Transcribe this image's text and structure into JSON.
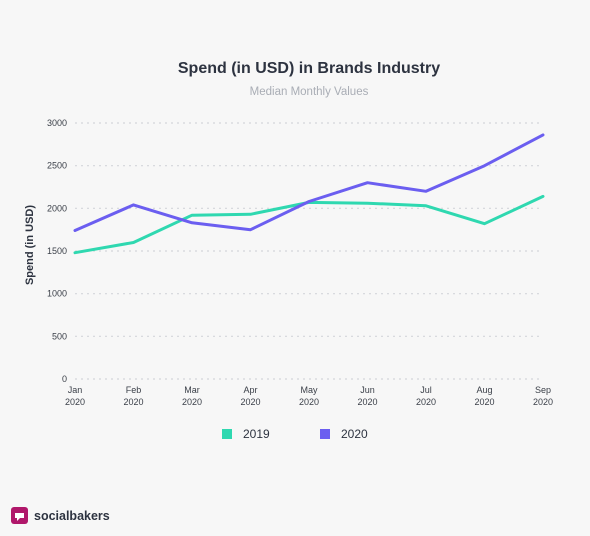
{
  "chart_data": {
    "type": "line",
    "title": "Spend (in USD) in Brands Industry",
    "subtitle": "Median Monthly Values",
    "ylabel": "Spend (in USD)",
    "xlabel": "",
    "categories": [
      [
        "Jan",
        "2020"
      ],
      [
        "Feb",
        "2020"
      ],
      [
        "Mar",
        "2020"
      ],
      [
        "Apr",
        "2020"
      ],
      [
        "May",
        "2020"
      ],
      [
        "Jun",
        "2020"
      ],
      [
        "Jul",
        "2020"
      ],
      [
        "Aug",
        "2020"
      ],
      [
        "Sep",
        "2020"
      ]
    ],
    "ylim": [
      0,
      3000
    ],
    "yticks": [
      0,
      500,
      1000,
      1500,
      2000,
      2500,
      3000
    ],
    "grid": true,
    "legend_position": "bottom",
    "series": [
      {
        "name": "2019",
        "color": "#2fd8b0",
        "values": [
          1480,
          1600,
          1920,
          1930,
          2070,
          2060,
          2030,
          1820,
          2140
        ]
      },
      {
        "name": "2020",
        "color": "#6b5ef0",
        "values": [
          1740,
          2040,
          1830,
          1750,
          2080,
          2300,
          2200,
          2500,
          2860
        ]
      }
    ]
  },
  "brand": {
    "name": "socialbakers",
    "icon": "socialbakers-logo-icon",
    "color": "#b0176a"
  }
}
